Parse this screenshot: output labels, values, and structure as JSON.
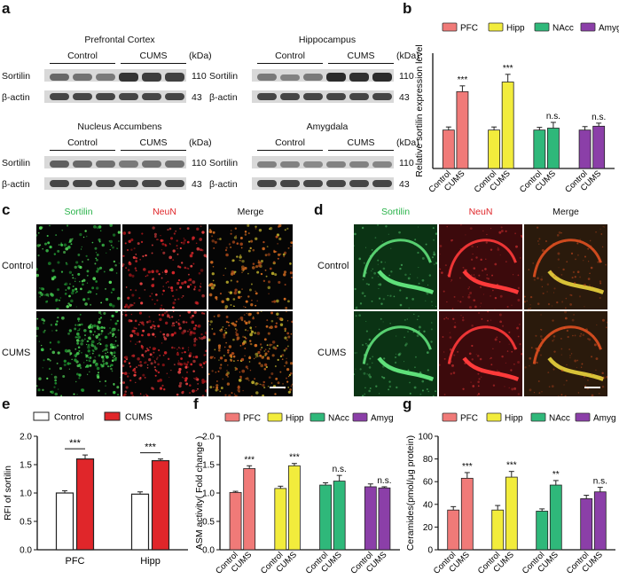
{
  "panel_letters": {
    "a": "a",
    "b": "b",
    "c": "c",
    "d": "d",
    "e": "e",
    "f": "f",
    "g": "g"
  },
  "blots": [
    {
      "region": "Prefrontal Cortex",
      "control": "Control",
      "cums": "CUMS",
      "kda": "(kDa)",
      "target": "Sortilin",
      "loading": "β-actin",
      "target_kda": "110",
      "loading_kda": "43",
      "target_intensity": [
        0.65,
        0.6,
        0.55,
        0.95,
        0.9,
        0.88
      ]
    },
    {
      "region": "Hippocampus",
      "control": "Control",
      "cums": "CUMS",
      "kda": "(kDa)",
      "target": "Sortilin",
      "loading": "β-actin",
      "target_kda": "110",
      "loading_kda": "43",
      "target_intensity": [
        0.55,
        0.5,
        0.55,
        1.0,
        0.98,
        1.0
      ]
    },
    {
      "region": "Nucleus Accumbens",
      "control": "Control",
      "cums": "CUMS",
      "kda": "(kDa)",
      "target": "Sortilin",
      "loading": "β-actin",
      "target_kda": "110",
      "loading_kda": "43",
      "target_intensity": [
        0.7,
        0.65,
        0.6,
        0.55,
        0.6,
        0.6
      ]
    },
    {
      "region": "Amygdala",
      "control": "Control",
      "cums": "CUMS",
      "kda": "(kDa)",
      "target": "Sortilin",
      "loading": "β-actin",
      "target_kda": "110",
      "loading_kda": "43",
      "target_intensity": [
        0.5,
        0.5,
        0.45,
        0.5,
        0.5,
        0.48
      ]
    }
  ],
  "panel_c": {
    "cols": [
      "Sortilin",
      "NeuN",
      "Merge"
    ],
    "rows": [
      "Control",
      "CUMS"
    ]
  },
  "panel_d": {
    "cols": [
      "Sortilin",
      "NeuN",
      "Merge"
    ],
    "rows": [
      "Control",
      "CUMS"
    ]
  },
  "colors": {
    "PFC": "#f07a78",
    "Hipp": "#f2ec3c",
    "NAcc": "#2fb87a",
    "Amyg": "#8b3fa8",
    "control_e": "#ffffff",
    "cums_e": "#e0262a",
    "sortilin_green": "#29b34a",
    "neun_red": "#e0262a"
  },
  "chart_data": [
    {
      "id": "b",
      "type": "bar",
      "ylabel": "Relative sortilin expression level",
      "ylim": [
        0,
        3
      ],
      "yticks": [],
      "legend": [
        "PFC",
        "Hipp",
        "NAcc",
        "Amyg"
      ],
      "legend_position": "top",
      "categories": [
        "Control",
        "CUMS"
      ],
      "series": [
        {
          "name": "PFC",
          "values": [
            1.0,
            2.0
          ],
          "errors": [
            0.08,
            0.15
          ],
          "sig": [
            "",
            "***"
          ]
        },
        {
          "name": "Hipp",
          "values": [
            1.0,
            2.25
          ],
          "errors": [
            0.08,
            0.2
          ],
          "sig": [
            "",
            "***"
          ]
        },
        {
          "name": "NAcc",
          "values": [
            1.0,
            1.05
          ],
          "errors": [
            0.07,
            0.15
          ],
          "sig": [
            "",
            "n.s."
          ]
        },
        {
          "name": "Amyg",
          "values": [
            1.0,
            1.1
          ],
          "errors": [
            0.09,
            0.08
          ],
          "sig": [
            "",
            "n.s."
          ]
        }
      ]
    },
    {
      "id": "e",
      "type": "bar",
      "ylabel": "RFI of sortilin",
      "ylim": [
        0,
        2.0
      ],
      "yticks": [
        0.0,
        0.5,
        1.0,
        1.5,
        2.0
      ],
      "legend": [
        "Control",
        "CUMS"
      ],
      "legend_position": "top",
      "categories": [
        "PFC",
        "Hipp"
      ],
      "series": [
        {
          "name": "Control",
          "values": [
            1.0,
            0.98
          ],
          "errors": [
            0.04,
            0.04
          ]
        },
        {
          "name": "CUMS",
          "values": [
            1.6,
            1.57
          ],
          "errors": [
            0.07,
            0.03
          ]
        }
      ],
      "sig": [
        "***",
        "***"
      ]
    },
    {
      "id": "f",
      "type": "bar",
      "ylabel": "ASM activity( Fold change )",
      "ylim": [
        0,
        2.0
      ],
      "yticks": [
        0.0,
        0.5,
        1.0,
        1.5,
        2.0
      ],
      "legend": [
        "PFC",
        "Hipp",
        "NAcc",
        "Amyg"
      ],
      "legend_position": "top",
      "categories": [
        "Control",
        "CUMS"
      ],
      "series": [
        {
          "name": "PFC",
          "values": [
            1.01,
            1.43
          ],
          "errors": [
            0.02,
            0.05
          ],
          "sig": [
            "",
            "***"
          ]
        },
        {
          "name": "Hipp",
          "values": [
            1.08,
            1.48
          ],
          "errors": [
            0.04,
            0.04
          ],
          "sig": [
            "",
            "***"
          ]
        },
        {
          "name": "NAcc",
          "values": [
            1.14,
            1.21
          ],
          "errors": [
            0.04,
            0.1
          ],
          "sig": [
            "",
            "n.s."
          ]
        },
        {
          "name": "Amyg",
          "values": [
            1.11,
            1.09
          ],
          "errors": [
            0.05,
            0.02
          ],
          "sig": [
            "",
            "n.s."
          ]
        }
      ]
    },
    {
      "id": "g",
      "type": "bar",
      "ylabel": "Ceramides(pmol/μg protein)",
      "ylim": [
        0,
        100
      ],
      "yticks": [
        0,
        20,
        40,
        60,
        80,
        100
      ],
      "legend": [
        "PFC",
        "Hipp",
        "NAcc",
        "Amyg"
      ],
      "legend_position": "top",
      "categories": [
        "Control",
        "CUMS"
      ],
      "series": [
        {
          "name": "PFC",
          "values": [
            35,
            63
          ],
          "errors": [
            3,
            5
          ],
          "sig": [
            "",
            "***"
          ]
        },
        {
          "name": "Hipp",
          "values": [
            35,
            64
          ],
          "errors": [
            4,
            5
          ],
          "sig": [
            "",
            "***"
          ]
        },
        {
          "name": "NAcc",
          "values": [
            34,
            57
          ],
          "errors": [
            2,
            4
          ],
          "sig": [
            "",
            "**"
          ]
        },
        {
          "name": "Amyg",
          "values": [
            45,
            51
          ],
          "errors": [
            3,
            4
          ],
          "sig": [
            "",
            "n.s."
          ]
        }
      ]
    }
  ]
}
